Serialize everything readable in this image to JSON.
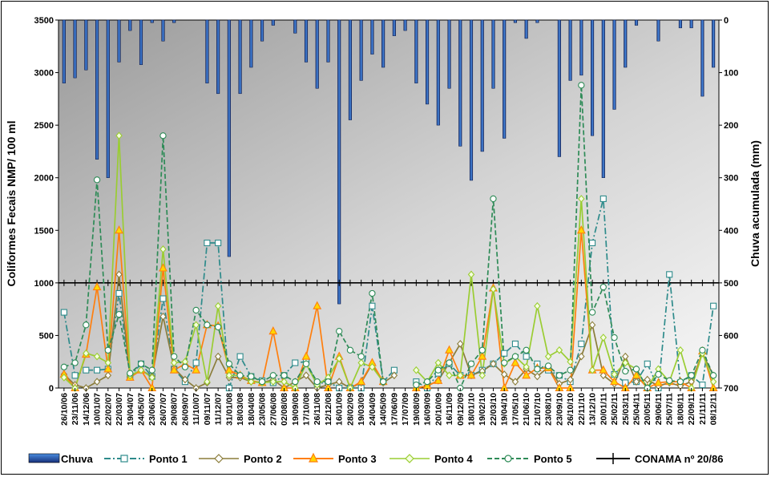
{
  "chart_data": {
    "type": "line",
    "title": "",
    "ylabel": "Coliformes Fecais  NMP/ 100 ml",
    "y2label": "Chuva acumulada (mm)",
    "ylim": [
      0,
      3500
    ],
    "yticks": [
      0,
      500,
      1000,
      1500,
      2000,
      2500,
      3000,
      3500
    ],
    "y2lim": [
      0,
      700
    ],
    "y2reversed": true,
    "y2ticks": [
      0,
      100,
      200,
      300,
      400,
      500,
      600,
      700
    ],
    "x": [
      "26/10/06",
      "23/11/06",
      "14/12/06",
      "10/01/07",
      "22/02/07",
      "22/03/07",
      "19/04/07",
      "24/05/07",
      "23/06/07",
      "26/07/07",
      "29/08/07",
      "26/09/07",
      "11/10/07",
      "09/11/07",
      "11/12/07",
      "31/01/08",
      "18/03/08",
      "18/04/08",
      "23/05/08",
      "27/06/08",
      "02/08/08",
      "19/09/08",
      "17/10/08",
      "26/11/08",
      "12/12/08",
      "16/01/09",
      "28/02/09",
      "19/03/09",
      "24/04/09",
      "14/05/09",
      "17/06/09",
      "17/07/09",
      "19/08/09",
      "16/09/09",
      "20/10/09",
      "16/11/09",
      "09/12/09",
      "18/01/10",
      "19/02/10",
      "22/03/10",
      "19/04/10",
      "17/05/10",
      "21/06/10",
      "21/07/10",
      "23/08/10",
      "23/09/10",
      "26/10/10",
      "22/11/10",
      "13/12/10",
      "20/01/11",
      "25/02/11",
      "25/03/11",
      "25/04/11",
      "20/05/11",
      "29/06/11",
      "25/07/11",
      "18/08/11",
      "22/09/11",
      "21/11/11",
      "08/12/11"
    ],
    "chuva_mm": [
      120,
      110,
      95,
      265,
      300,
      80,
      20,
      85,
      5,
      40,
      5,
      0,
      0,
      120,
      140,
      450,
      140,
      90,
      40,
      10,
      0,
      25,
      80,
      130,
      80,
      540,
      190,
      115,
      65,
      90,
      30,
      20,
      120,
      160,
      200,
      130,
      240,
      305,
      250,
      130,
      225,
      5,
      35,
      5,
      0,
      260,
      115,
      105,
      220,
      300,
      170,
      90,
      10,
      0,
      40,
      0,
      15,
      15,
      145,
      90
    ],
    "conama": 1000,
    "series": [
      {
        "name": "Ponto 1",
        "color": "#2e8b8b",
        "dash": "8,3,2,3",
        "marker": "square",
        "values": [
          720,
          120,
          170,
          170,
          180,
          900,
          110,
          230,
          110,
          850,
          180,
          60,
          240,
          1380,
          1380,
          0,
          300,
          110,
          70,
          50,
          120,
          240,
          250,
          40,
          60,
          0,
          0,
          0,
          780,
          60,
          170,
          null,
          60,
          0,
          140,
          230,
          120,
          120,
          170,
          230,
          330,
          420,
          300,
          230,
          170,
          120,
          60,
          420,
          1380,
          1800,
          130,
          50,
          60,
          230,
          0,
          1080,
          50,
          120,
          30,
          780
        ]
      },
      {
        "name": "Ponto 2",
        "color": "#8b7d3a",
        "dash": "",
        "marker": "diamond",
        "values": [
          130,
          30,
          0,
          60,
          120,
          1080,
          110,
          170,
          110,
          680,
          190,
          80,
          0,
          50,
          300,
          100,
          100,
          60,
          50,
          80,
          0,
          60,
          120,
          0,
          30,
          60,
          0,
          50,
          230,
          50,
          120,
          null,
          0,
          20,
          70,
          240,
          420,
          120,
          160,
          230,
          130,
          60,
          180,
          110,
          200,
          40,
          80,
          300,
          600,
          120,
          40,
          300,
          60,
          80,
          20,
          50,
          20,
          60,
          330,
          120
        ]
      },
      {
        "name": "Ponto 3",
        "color": "#ff7f0e",
        "dash": "",
        "marker": "triangle",
        "values": [
          130,
          0,
          320,
          960,
          180,
          1500,
          100,
          170,
          0,
          1140,
          170,
          230,
          170,
          600,
          590,
          170,
          120,
          70,
          50,
          540,
          0,
          0,
          300,
          780,
          0,
          300,
          0,
          60,
          240,
          60,
          null,
          null,
          0,
          20,
          70,
          360,
          120,
          120,
          300,
          950,
          0,
          240,
          120,
          190,
          190,
          0,
          0,
          1500,
          170,
          170,
          60,
          0,
          120,
          0,
          50,
          60,
          60,
          0,
          350,
          0
        ]
      },
      {
        "name": "Ponto 4",
        "color": "#9acd32",
        "dash": "",
        "marker": "diamond-open",
        "values": [
          100,
          0,
          330,
          300,
          240,
          2400,
          120,
          170,
          100,
          1320,
          240,
          250,
          600,
          60,
          780,
          120,
          120,
          60,
          50,
          60,
          60,
          0,
          230,
          30,
          100,
          280,
          0,
          240,
          200,
          60,
          null,
          null,
          170,
          60,
          240,
          120,
          120,
          1080,
          120,
          940,
          230,
          300,
          200,
          780,
          300,
          360,
          250,
          1800,
          170,
          480,
          130,
          240,
          180,
          0,
          180,
          60,
          360,
          0,
          330,
          60
        ]
      },
      {
        "name": "Ponto 5",
        "color": "#2e8b57",
        "dash": "6,3",
        "marker": "circle",
        "values": [
          200,
          240,
          600,
          1980,
          360,
          700,
          140,
          230,
          170,
          2400,
          300,
          200,
          740,
          600,
          580,
          230,
          120,
          110,
          60,
          120,
          120,
          60,
          230,
          60,
          60,
          540,
          360,
          300,
          900,
          60,
          null,
          null,
          30,
          60,
          170,
          240,
          0,
          230,
          360,
          1800,
          240,
          300,
          360,
          180,
          210,
          120,
          170,
          2880,
          720,
          960,
          480,
          160,
          180,
          0,
          130,
          70,
          60,
          120,
          360,
          120
        ]
      }
    ]
  },
  "legend": {
    "chuva": "Chuva",
    "p1": "Ponto 1",
    "p2": "Ponto 2",
    "p3": "Ponto 3",
    "p4": "Ponto 4",
    "p5": "Ponto 5",
    "conama": "CONAMA nº 20/86"
  }
}
